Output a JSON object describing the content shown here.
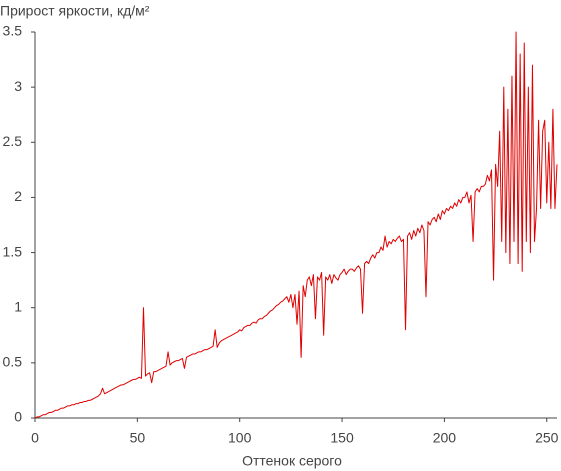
{
  "chart_data": {
    "type": "line",
    "title": "Прирост яркости, кд/м²",
    "x_label": "Оттенок серого",
    "x": [
      0,
      1,
      2,
      3,
      4,
      5,
      6,
      7,
      8,
      9,
      10,
      11,
      12,
      13,
      14,
      15,
      16,
      17,
      18,
      19,
      20,
      21,
      22,
      23,
      24,
      25,
      26,
      27,
      28,
      29,
      30,
      31,
      32,
      33,
      34,
      35,
      36,
      37,
      38,
      39,
      40,
      41,
      42,
      43,
      44,
      45,
      46,
      47,
      48,
      49,
      50,
      51,
      52,
      53,
      54,
      55,
      56,
      57,
      58,
      59,
      60,
      61,
      62,
      63,
      64,
      65,
      66,
      67,
      68,
      69,
      70,
      71,
      72,
      73,
      74,
      75,
      76,
      77,
      78,
      79,
      80,
      81,
      82,
      83,
      84,
      85,
      86,
      87,
      88,
      89,
      90,
      91,
      92,
      93,
      94,
      95,
      96,
      97,
      98,
      99,
      100,
      101,
      102,
      103,
      104,
      105,
      106,
      107,
      108,
      109,
      110,
      111,
      112,
      113,
      114,
      115,
      116,
      117,
      118,
      119,
      120,
      121,
      122,
      123,
      124,
      125,
      126,
      127,
      128,
      129,
      130,
      131,
      132,
      133,
      134,
      135,
      136,
      137,
      138,
      139,
      140,
      141,
      142,
      143,
      144,
      145,
      146,
      147,
      148,
      149,
      150,
      151,
      152,
      153,
      154,
      155,
      156,
      157,
      158,
      159,
      160,
      161,
      162,
      163,
      164,
      165,
      166,
      167,
      168,
      169,
      170,
      171,
      172,
      173,
      174,
      175,
      176,
      177,
      178,
      179,
      180,
      181,
      182,
      183,
      184,
      185,
      186,
      187,
      188,
      189,
      190,
      191,
      192,
      193,
      194,
      195,
      196,
      197,
      198,
      199,
      200,
      201,
      202,
      203,
      204,
      205,
      206,
      207,
      208,
      209,
      210,
      211,
      212,
      213,
      214,
      215,
      216,
      217,
      218,
      219,
      220,
      221,
      222,
      223,
      224,
      225,
      226,
      227,
      228,
      229,
      230,
      231,
      232,
      233,
      234,
      235,
      236,
      237,
      238,
      239,
      240,
      241,
      242,
      243,
      244,
      245,
      246,
      247,
      248,
      249,
      250,
      251,
      252,
      253,
      254,
      255
    ],
    "series": [
      {
        "color": "#e00000",
        "values": [
          0,
          0.01,
          0.01,
          0.02,
          0.03,
          0.03,
          0.04,
          0.05,
          0.05,
          0.06,
          0.07,
          0.07,
          0.08,
          0.09,
          0.09,
          0.1,
          0.11,
          0.11,
          0.12,
          0.12,
          0.13,
          0.13,
          0.14,
          0.14,
          0.15,
          0.15,
          0.16,
          0.16,
          0.17,
          0.18,
          0.19,
          0.2,
          0.22,
          0.27,
          0.22,
          0.23,
          0.24,
          0.25,
          0.26,
          0.27,
          0.28,
          0.29,
          0.3,
          0.3,
          0.31,
          0.32,
          0.33,
          0.34,
          0.35,
          0.35,
          0.36,
          0.37,
          0.36,
          1.0,
          0.38,
          0.4,
          0.41,
          0.32,
          0.42,
          0.42,
          0.43,
          0.44,
          0.45,
          0.46,
          0.47,
          0.6,
          0.48,
          0.5,
          0.51,
          0.52,
          0.52,
          0.53,
          0.54,
          0.45,
          0.55,
          0.56,
          0.57,
          0.58,
          0.58,
          0.59,
          0.6,
          0.6,
          0.61,
          0.62,
          0.62,
          0.63,
          0.64,
          0.65,
          0.8,
          0.64,
          0.68,
          0.7,
          0.71,
          0.72,
          0.73,
          0.74,
          0.75,
          0.76,
          0.77,
          0.78,
          0.8,
          0.79,
          0.82,
          0.83,
          0.84,
          0.84,
          0.86,
          0.87,
          0.86,
          0.89,
          0.9,
          0.9,
          0.92,
          0.93,
          0.95,
          0.97,
          0.98,
          1.0,
          1.02,
          1.03,
          1.05,
          1.06,
          1.08,
          1.1,
          1.05,
          1.12,
          1.0,
          1.12,
          0.85,
          1.15,
          0.55,
          1.2,
          1.1,
          1.25,
          1.28,
          1.2,
          1.3,
          0.9,
          1.28,
          1.25,
          1.32,
          0.75,
          1.28,
          1.25,
          1.3,
          1.22,
          1.3,
          1.27,
          1.25,
          1.3,
          1.32,
          1.35,
          1.3,
          1.33,
          1.35,
          1.35,
          1.33,
          1.36,
          1.38,
          1.35,
          0.95,
          1.4,
          1.42,
          1.4,
          1.45,
          1.48,
          1.45,
          1.5,
          1.5,
          1.55,
          1.52,
          1.65,
          1.55,
          1.6,
          1.58,
          1.62,
          1.6,
          1.63,
          1.65,
          1.6,
          1.62,
          0.8,
          1.65,
          1.68,
          1.62,
          1.7,
          1.65,
          1.72,
          1.68,
          1.75,
          1.7,
          1.1,
          1.78,
          1.75,
          1.8,
          1.82,
          1.78,
          1.85,
          1.8,
          1.88,
          1.85,
          1.9,
          1.88,
          1.92,
          1.9,
          1.95,
          1.92,
          1.98,
          1.95,
          2.0,
          2.0,
          2.05,
          1.95,
          2.02,
          1.6,
          2.05,
          2.08,
          2.05,
          2.1,
          2.1,
          2.12,
          2.2,
          2.15,
          2.25,
          1.25,
          2.3,
          2.1,
          2.6,
          1.6,
          3.0,
          1.5,
          2.8,
          1.4,
          3.1,
          1.6,
          3.5,
          1.4,
          3.3,
          1.33,
          3.4,
          1.6,
          3.0,
          1.5,
          3.2,
          1.6,
          1.9,
          2.7,
          1.9,
          2.6,
          2.7,
          1.95,
          2.5,
          1.9,
          2.8,
          1.9,
          2.3
        ]
      }
    ],
    "xlim": [
      0,
      255
    ],
    "ylim": [
      0,
      3.5
    ],
    "xticks": [
      0,
      50,
      100,
      150,
      200,
      250
    ],
    "yticks": [
      0,
      0.5,
      1,
      1.5,
      2,
      2.5,
      3,
      3.5
    ],
    "grid": false
  }
}
